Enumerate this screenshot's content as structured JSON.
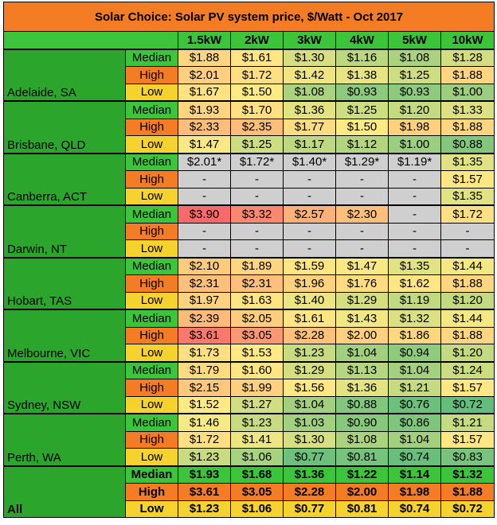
{
  "title": "Solar Choice: Solar PV system price, $/Watt - Oct 2017",
  "colors": {
    "title_bg": "#f47c24",
    "header_bg": "#3cc43a",
    "city_bg": "#2ca52c",
    "median_bg": "#3cc43a",
    "high_bg": "#f47c24",
    "low_bg": "#f5d22e",
    "empty_cell": "#cfcfcf",
    "scale_low": "#63be7b",
    "scale_mid": "#ffeb84",
    "scale_high": "#f8696b"
  },
  "chart_data": {
    "type": "table",
    "title": "Solar Choice: Solar PV system price, $/Watt - Oct 2017",
    "columns": [
      "1.5kW",
      "2kW",
      "3kW",
      "4kW",
      "5kW",
      "10kW"
    ],
    "levels": [
      "Median",
      "High",
      "Low"
    ],
    "color_scale": {
      "min": 0.72,
      "mid": 1.5,
      "max": 3.9
    },
    "groups": [
      {
        "city": "Adelaide, SA",
        "rows": [
          {
            "level": "Median",
            "values": [
              "$1.88",
              "$1.61",
              "$1.30",
              "$1.16",
              "$1.08",
              "$1.28"
            ]
          },
          {
            "level": "High",
            "values": [
              "$2.01",
              "$1.72",
              "$1.42",
              "$1.38",
              "$1.25",
              "$1.88"
            ]
          },
          {
            "level": "Low",
            "values": [
              "$1.67",
              "$1.50",
              "$1.08",
              "$0.93",
              "$0.93",
              "$1.00"
            ]
          }
        ]
      },
      {
        "city": "Brisbane, QLD",
        "rows": [
          {
            "level": "Median",
            "values": [
              "$1.93",
              "$1.70",
              "$1.36",
              "$1.25",
              "$1.20",
              "$1.33"
            ]
          },
          {
            "level": "High",
            "values": [
              "$2.33",
              "$2.35",
              "$1.77",
              "$1.50",
              "$1.98",
              "$1.88"
            ]
          },
          {
            "level": "Low",
            "values": [
              "$1.47",
              "$1.25",
              "$1.17",
              "$1.12",
              "$1.00",
              "$0.88"
            ]
          }
        ]
      },
      {
        "city": "Canberra, ACT",
        "rows": [
          {
            "level": "Median",
            "values": [
              "$2.01*",
              "$1.72*",
              "$1.40*",
              "$1.29*",
              "$1.19*",
              "$1.35"
            ]
          },
          {
            "level": "High",
            "values": [
              "-",
              "-",
              "-",
              "-",
              "-",
              "$1.57"
            ]
          },
          {
            "level": "Low",
            "values": [
              "-",
              "-",
              "-",
              "-",
              "-",
              "$1.35"
            ]
          }
        ]
      },
      {
        "city": "Darwin, NT",
        "rows": [
          {
            "level": "Median",
            "values": [
              "$3.90",
              "$3.32",
              "$2.57",
              "$2.30",
              "-",
              "$1.72"
            ]
          },
          {
            "level": "High",
            "values": [
              "-",
              "-",
              "-",
              "-",
              "-",
              "-"
            ]
          },
          {
            "level": "Low",
            "values": [
              "-",
              "-",
              "-",
              "-",
              "-",
              "-"
            ]
          }
        ]
      },
      {
        "city": "Hobart, TAS",
        "rows": [
          {
            "level": "Median",
            "values": [
              "$2.10",
              "$1.89",
              "$1.59",
              "$1.47",
              "$1.35",
              "$1.44"
            ]
          },
          {
            "level": "High",
            "values": [
              "$2.31",
              "$2.31",
              "$1.96",
              "$1.76",
              "$1.62",
              "$1.88"
            ]
          },
          {
            "level": "Low",
            "values": [
              "$1.97",
              "$1.63",
              "$1.40",
              "$1.29",
              "$1.19",
              "$1.20"
            ]
          }
        ]
      },
      {
        "city": "Melbourne, VIC",
        "rows": [
          {
            "level": "Median",
            "values": [
              "$2.39",
              "$2.05",
              "$1.61",
              "$1.43",
              "$1.32",
              "$1.44"
            ]
          },
          {
            "level": "High",
            "values": [
              "$3.61",
              "$3.05",
              "$2.28",
              "$2.00",
              "$1.86",
              "$1.88"
            ]
          },
          {
            "level": "Low",
            "values": [
              "$1.73",
              "$1.53",
              "$1.23",
              "$1.04",
              "$0.94",
              "$1.20"
            ]
          }
        ]
      },
      {
        "city": "Sydney, NSW",
        "rows": [
          {
            "level": "Median",
            "values": [
              "$1.79",
              "$1.60",
              "$1.29",
              "$1.13",
              "$1.04",
              "$1.24"
            ]
          },
          {
            "level": "High",
            "values": [
              "$2.15",
              "$1.99",
              "$1.56",
              "$1.36",
              "$1.21",
              "$1.57"
            ]
          },
          {
            "level": "Low",
            "values": [
              "$1.52",
              "$1.27",
              "$1.04",
              "$0.88",
              "$0.76",
              "$0.72"
            ]
          }
        ]
      },
      {
        "city": "Perth, WA",
        "rows": [
          {
            "level": "Median",
            "values": [
              "$1.46",
              "$1.23",
              "$1.03",
              "$0.90",
              "$0.86",
              "$1.21"
            ]
          },
          {
            "level": "High",
            "values": [
              "$1.72",
              "$1.41",
              "$1.30",
              "$1.08",
              "$1.04",
              "$1.57"
            ]
          },
          {
            "level": "Low",
            "values": [
              "$1.23",
              "$1.06",
              "$0.77",
              "$0.81",
              "$0.74",
              "$0.83"
            ]
          }
        ]
      },
      {
        "city": "All",
        "bold": true,
        "rows": [
          {
            "level": "Median",
            "values": [
              "$1.93",
              "$1.68",
              "$1.36",
              "$1.22",
              "$1.14",
              "$1.32"
            ]
          },
          {
            "level": "High",
            "values": [
              "$3.61",
              "$3.05",
              "$2.28",
              "$2.00",
              "$1.98",
              "$1.88"
            ]
          },
          {
            "level": "Low",
            "values": [
              "$1.23",
              "$1.06",
              "$0.77",
              "$0.81",
              "$0.74",
              "$0.72"
            ]
          }
        ]
      }
    ]
  }
}
